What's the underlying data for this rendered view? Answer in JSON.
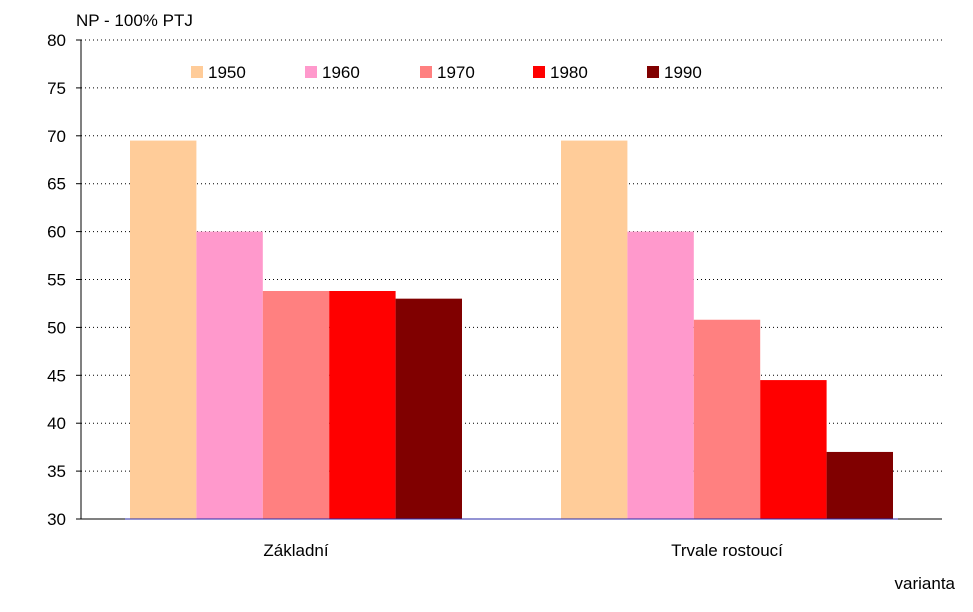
{
  "chart_data": {
    "type": "bar",
    "ylabel": "NP - 100% PTJ",
    "xlabel": "varianta",
    "ylim": [
      30,
      80
    ],
    "yticks": [
      30,
      35,
      40,
      45,
      50,
      55,
      60,
      65,
      70,
      75,
      80
    ],
    "categories": [
      "Základní",
      "Trvale rostoucí"
    ],
    "grid": "horizontal dotted",
    "legend_position": "top",
    "series": [
      {
        "name": "1950",
        "color": "#FFCC99",
        "values": [
          69.5,
          69.5
        ]
      },
      {
        "name": "1960",
        "color": "#FF99CC",
        "values": [
          60.0,
          60.0
        ]
      },
      {
        "name": "1970",
        "color": "#FF8080",
        "values": [
          53.8,
          50.8
        ]
      },
      {
        "name": "1980",
        "color": "#FF0000",
        "values": [
          53.8,
          44.5
        ]
      },
      {
        "name": "1990",
        "color": "#800000",
        "values": [
          53.0,
          37.0
        ]
      }
    ]
  }
}
